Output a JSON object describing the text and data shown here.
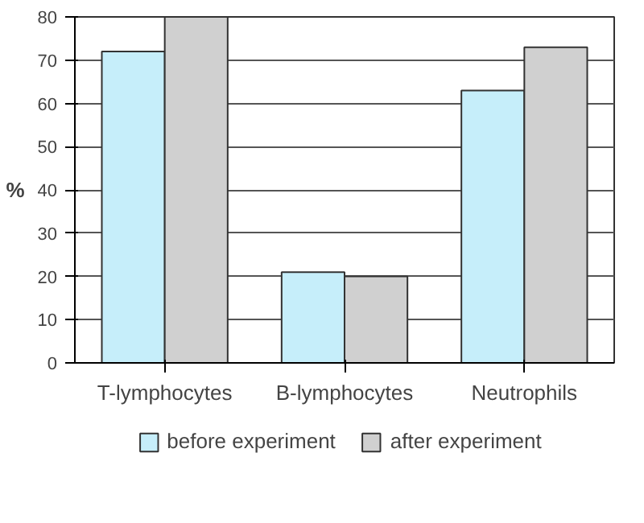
{
  "chart_data": {
    "type": "bar",
    "ylabel": "%",
    "categories": [
      "T-lymphocytes",
      "B-lymphocytes",
      "Neutrophils"
    ],
    "series": [
      {
        "name": "before experiment",
        "color": "#c6eefa",
        "values": [
          72,
          21,
          63
        ]
      },
      {
        "name": "after experiment",
        "color": "#d0d0d0",
        "values": [
          80,
          20,
          73
        ]
      }
    ],
    "ylim": [
      0,
      80
    ],
    "yticks": [
      0,
      10,
      20,
      30,
      40,
      50,
      60,
      70,
      80
    ],
    "grid": "y",
    "legend": "bottom"
  }
}
